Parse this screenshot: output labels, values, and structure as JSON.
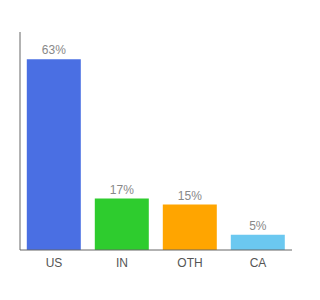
{
  "chart_data": {
    "type": "bar",
    "categories": [
      "US",
      "IN",
      "OTH",
      "CA"
    ],
    "values": [
      63,
      17,
      15,
      5
    ],
    "value_labels": [
      "63%",
      "17%",
      "15%",
      "5%"
    ],
    "colors": [
      "#4A6FE3",
      "#2ECC2E",
      "#FFA500",
      "#6BC8F0"
    ],
    "ylim": [
      0,
      72
    ],
    "data_labels": true,
    "tick_labels": "x",
    "grid": false
  }
}
